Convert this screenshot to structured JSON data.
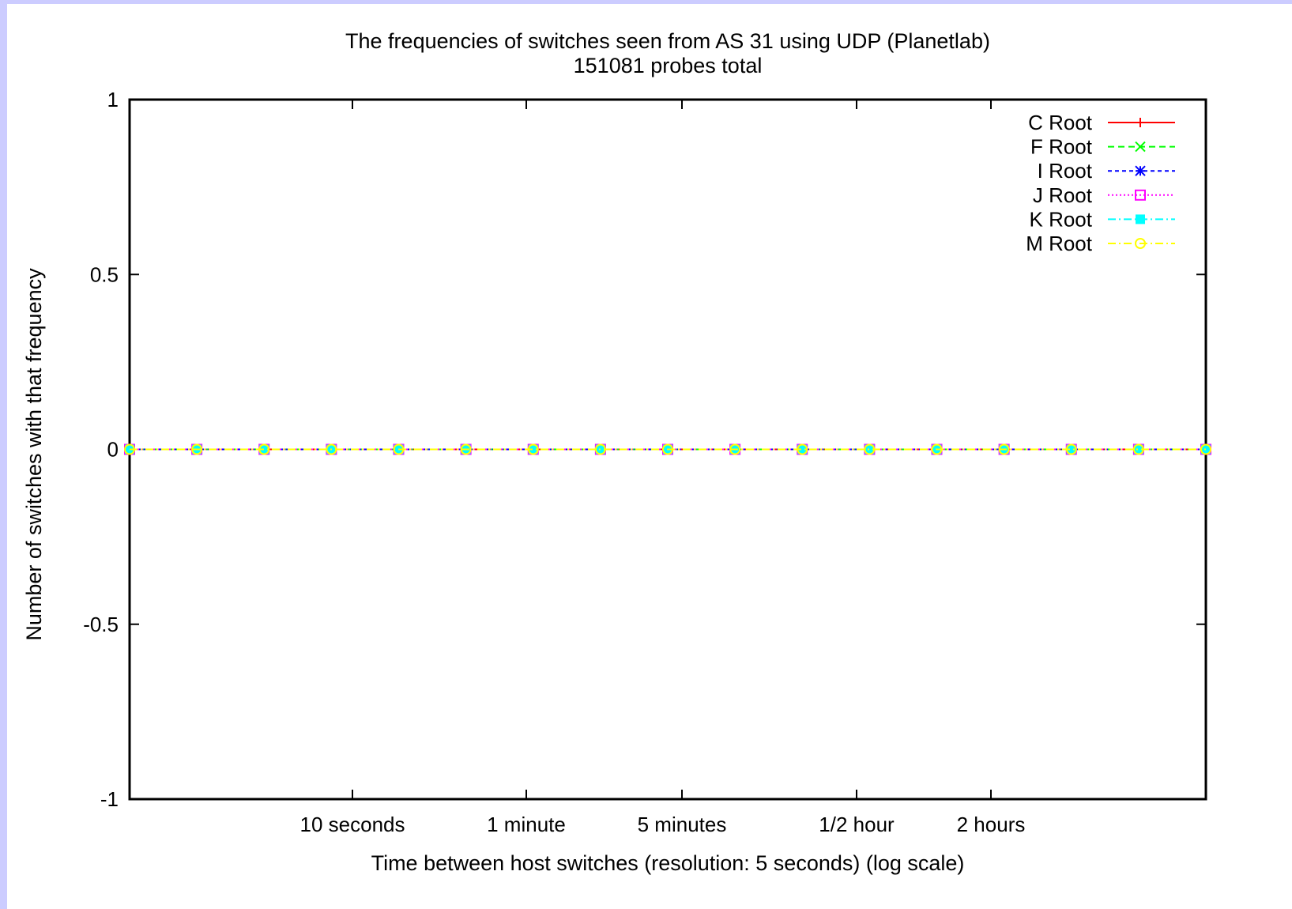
{
  "chart_data": {
    "type": "line",
    "title": "The frequencies of switches seen from AS 31 using UDP (Planetlab)",
    "subtitle": "151081 probes total",
    "xlabel": "Time between host switches (resolution: 5 seconds) (log scale)",
    "ylabel": "Number of switches with that frequency",
    "x_scale": "log",
    "ylim": [
      -1,
      1
    ],
    "y_ticks": [
      {
        "value": 1,
        "label": "1"
      },
      {
        "value": 0.5,
        "label": "0.5"
      },
      {
        "value": 0,
        "label": "0"
      },
      {
        "value": -0.5,
        "label": "-0.5"
      },
      {
        "value": -1,
        "label": "-1"
      }
    ],
    "x_ticks": [
      "10 seconds",
      "1 minute",
      "5 minutes",
      "1/2 hour",
      "2 hours"
    ],
    "grid": false,
    "legend_position": "top-right",
    "series": [
      {
        "name": "C Root",
        "color": "#ff0000",
        "marker": "plus",
        "dash": "solid",
        "values": [
          0,
          0,
          0,
          0,
          0,
          0,
          0,
          0,
          0,
          0,
          0,
          0,
          0,
          0,
          0,
          0,
          0
        ]
      },
      {
        "name": "F Root",
        "color": "#00ff00",
        "marker": "cross",
        "dash": "dashed",
        "values": [
          0,
          0,
          0,
          0,
          0,
          0,
          0,
          0,
          0,
          0,
          0,
          0,
          0,
          0,
          0,
          0,
          0
        ]
      },
      {
        "name": "I Root",
        "color": "#0000ff",
        "marker": "star",
        "dash": "short-dash",
        "values": [
          0,
          0,
          0,
          0,
          0,
          0,
          0,
          0,
          0,
          0,
          0,
          0,
          0,
          0,
          0,
          0,
          0
        ]
      },
      {
        "name": "J Root",
        "color": "#ff00ff",
        "marker": "open-square",
        "dash": "dotted",
        "values": [
          0,
          0,
          0,
          0,
          0,
          0,
          0,
          0,
          0,
          0,
          0,
          0,
          0,
          0,
          0,
          0,
          0
        ]
      },
      {
        "name": "K Root",
        "color": "#00ffff",
        "marker": "filled-square",
        "dash": "dash-dot",
        "values": [
          0,
          0,
          0,
          0,
          0,
          0,
          0,
          0,
          0,
          0,
          0,
          0,
          0,
          0,
          0,
          0,
          0
        ]
      },
      {
        "name": "M Root",
        "color": "#ffff00",
        "marker": "open-circle",
        "dash": "dash-dot",
        "values": [
          0,
          0,
          0,
          0,
          0,
          0,
          0,
          0,
          0,
          0,
          0,
          0,
          0,
          0,
          0,
          0,
          0
        ]
      }
    ]
  }
}
